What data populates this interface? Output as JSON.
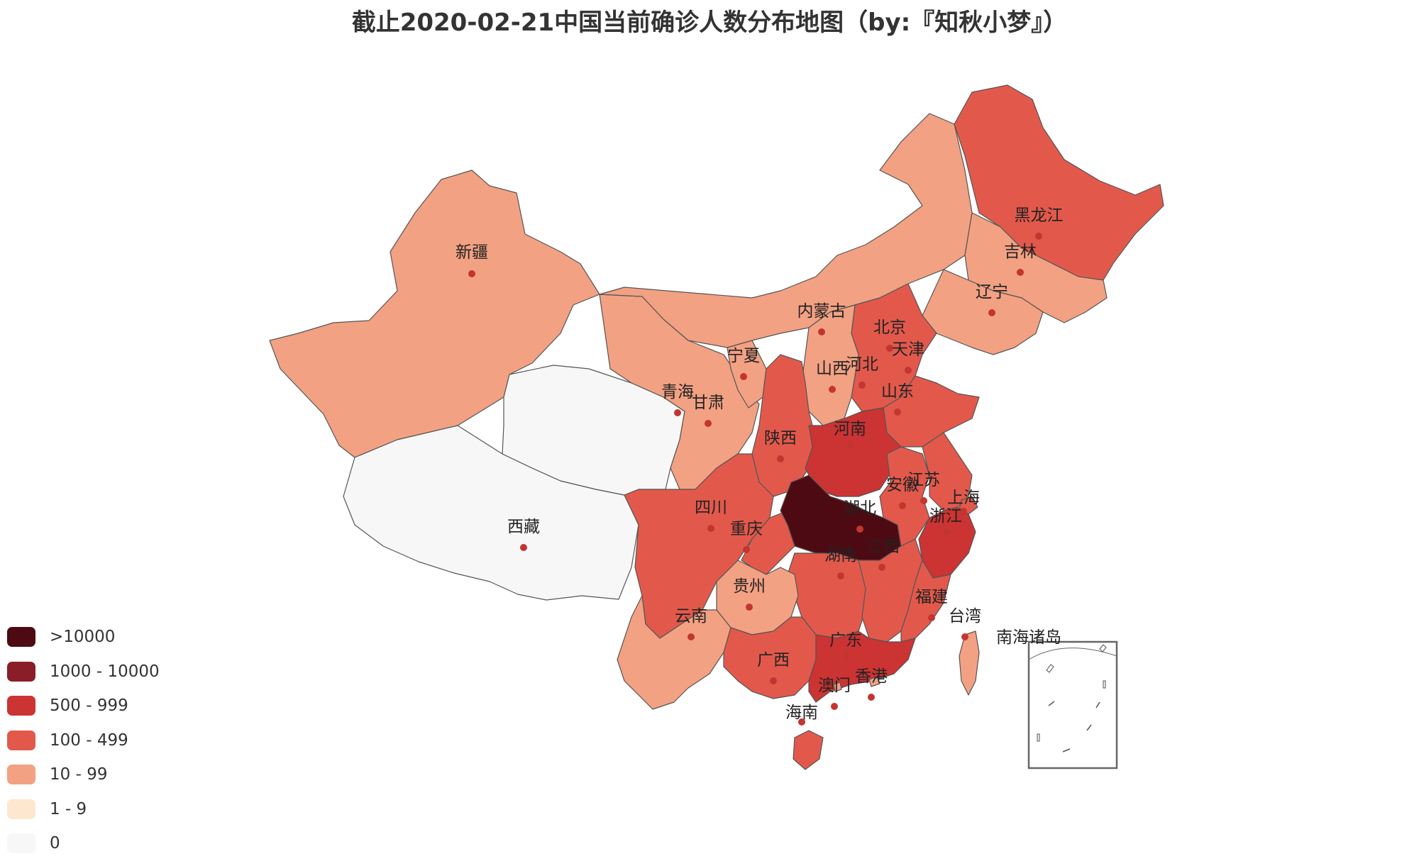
{
  "title": "截止2020-02-21中国当前确诊人数分布地图（by:『知秋小梦』）",
  "legend": [
    {
      "label": ">10000",
      "color": "#4e0a12"
    },
    {
      "label": "1000 - 10000",
      "color": "#8a1e28"
    },
    {
      "label": "500 - 999",
      "color": "#cc3333"
    },
    {
      "label": "100 - 499",
      "color": "#e2594c"
    },
    {
      "label": "10 - 99",
      "color": "#f3a183"
    },
    {
      "label": "1 - 9",
      "color": "#fde8cf"
    },
    {
      "label": "0",
      "color": "#f7f7f7"
    }
  ],
  "provinces": [
    {
      "name": "新疆",
      "tier": "10 - 99"
    },
    {
      "name": "西藏",
      "tier": "0"
    },
    {
      "name": "青海",
      "tier": "0"
    },
    {
      "name": "甘肃",
      "tier": "10 - 99"
    },
    {
      "name": "宁夏",
      "tier": "10 - 99"
    },
    {
      "name": "内蒙古",
      "tier": "10 - 99"
    },
    {
      "name": "黑龙江",
      "tier": "100 - 499"
    },
    {
      "name": "吉林",
      "tier": "10 - 99"
    },
    {
      "name": "辽宁",
      "tier": "10 - 99"
    },
    {
      "name": "北京",
      "tier": "100 - 499"
    },
    {
      "name": "天津",
      "tier": "10 - 99"
    },
    {
      "name": "河北",
      "tier": "100 - 499"
    },
    {
      "name": "山西",
      "tier": "10 - 99"
    },
    {
      "name": "山东",
      "tier": "100 - 499"
    },
    {
      "name": "陕西",
      "tier": "100 - 499"
    },
    {
      "name": "河南",
      "tier": "500 - 999"
    },
    {
      "name": "四川",
      "tier": "100 - 499"
    },
    {
      "name": "重庆",
      "tier": "100 - 499"
    },
    {
      "name": "湖北",
      "tier": ">10000"
    },
    {
      "name": "安徽",
      "tier": "100 - 499"
    },
    {
      "name": "江苏",
      "tier": "100 - 499"
    },
    {
      "name": "上海",
      "tier": "100 - 499"
    },
    {
      "name": "浙江",
      "tier": "500 - 999"
    },
    {
      "name": "湖南",
      "tier": "100 - 499"
    },
    {
      "name": "江西",
      "tier": "100 - 499"
    },
    {
      "name": "贵州",
      "tier": "10 - 99"
    },
    {
      "name": "云南",
      "tier": "10 - 99"
    },
    {
      "name": "福建",
      "tier": "100 - 499"
    },
    {
      "name": "台湾",
      "tier": "10 - 99"
    },
    {
      "name": "广西",
      "tier": "100 - 499"
    },
    {
      "name": "广东",
      "tier": "500 - 999"
    },
    {
      "name": "澳门",
      "tier": "10 - 99"
    },
    {
      "name": "香港",
      "tier": "10 - 99"
    },
    {
      "name": "海南",
      "tier": "100 - 499"
    },
    {
      "name": "南海诸岛",
      "tier": "0"
    }
  ]
}
